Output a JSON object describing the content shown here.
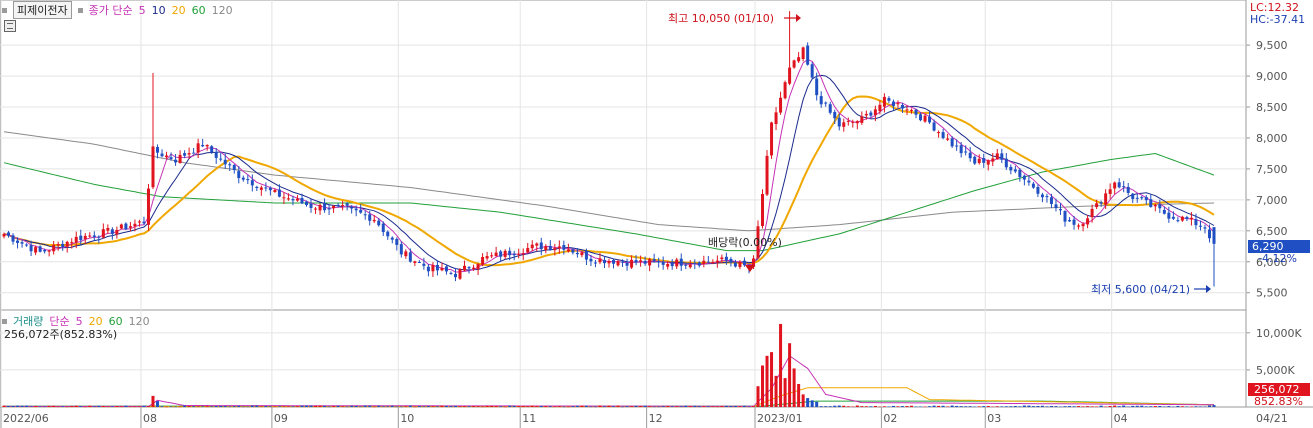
{
  "header": {
    "stock_name": "피제이전자",
    "price_indicator": "종가 단순",
    "ma_periods": [
      "5",
      "10",
      "20",
      "60",
      "120"
    ],
    "lc": "LC:12.32",
    "hc": "HC:-37.41"
  },
  "volume_header": {
    "label": "거래량",
    "ma_label": "단순",
    "ma_periods": [
      "5",
      "20",
      "60",
      "120"
    ],
    "current": "256,072주(852.83%)"
  },
  "annotations": {
    "high": "최고 10,050 (01/10)",
    "low": "최저 5,600 (04/21)",
    "dividend": "배당락(0.00%)"
  },
  "current_price": {
    "value": "6,290",
    "change": "-4.12%"
  },
  "current_volume": {
    "value": "256,072",
    "ratio": "852.83%"
  },
  "colors": {
    "up": "#e0141e",
    "down": "#1f4fc2",
    "ma5": "#c633b6",
    "ma10": "#1a2a8c",
    "ma20": "#f0a800",
    "ma60": "#22a03a",
    "ma120": "#8a8a8a"
  },
  "chart_data": {
    "type": "candlestick",
    "price_axis": {
      "ticks": [
        5500,
        6000,
        6500,
        7000,
        7500,
        8000,
        8500,
        9000,
        9500
      ],
      "tick_labels": [
        "5,500",
        "6,000",
        "6,500",
        "7,000",
        "7,500",
        "8,000",
        "8,500",
        "9,000",
        "9,500"
      ],
      "range": [
        5350,
        10100
      ]
    },
    "volume_axis": {
      "ticks": [
        5000,
        10000
      ],
      "tick_labels": [
        "5,000K",
        "10,000K"
      ],
      "range": [
        0,
        12000
      ]
    },
    "x_axis": {
      "labels": [
        "2022/06",
        "08",
        "09",
        "10",
        "11",
        "12",
        "2023/01",
        "02",
        "03",
        "04",
        "04/21"
      ]
    },
    "price_anchors": [
      {
        "i": 0,
        "p": 6450
      },
      {
        "i": 8,
        "p": 6150
      },
      {
        "i": 16,
        "p": 6380
      },
      {
        "i": 24,
        "p": 6500
      },
      {
        "i": 31,
        "p": 6650
      },
      {
        "i": 33,
        "p": 7800
      },
      {
        "i": 38,
        "p": 7650
      },
      {
        "i": 44,
        "p": 7900
      },
      {
        "i": 52,
        "p": 7400
      },
      {
        "i": 60,
        "p": 7100
      },
      {
        "i": 68,
        "p": 6900
      },
      {
        "i": 76,
        "p": 6850
      },
      {
        "i": 82,
        "p": 6700
      },
      {
        "i": 88,
        "p": 6150
      },
      {
        "i": 94,
        "p": 5900
      },
      {
        "i": 100,
        "p": 5800
      },
      {
        "i": 106,
        "p": 6050
      },
      {
        "i": 112,
        "p": 6150
      },
      {
        "i": 118,
        "p": 6250
      },
      {
        "i": 124,
        "p": 6250
      },
      {
        "i": 130,
        "p": 6050
      },
      {
        "i": 138,
        "p": 6000
      },
      {
        "i": 146,
        "p": 5980
      },
      {
        "i": 154,
        "p": 6000
      },
      {
        "i": 160,
        "p": 6020
      },
      {
        "i": 165,
        "p": 5900
      },
      {
        "i": 166,
        "p": 6000
      },
      {
        "i": 170,
        "p": 8200
      },
      {
        "i": 174,
        "p": 9100
      },
      {
        "i": 177,
        "p": 9400
      },
      {
        "i": 180,
        "p": 8700
      },
      {
        "i": 185,
        "p": 8200
      },
      {
        "i": 190,
        "p": 8300
      },
      {
        "i": 195,
        "p": 8600
      },
      {
        "i": 200,
        "p": 8500
      },
      {
        "i": 205,
        "p": 8250
      },
      {
        "i": 210,
        "p": 7900
      },
      {
        "i": 215,
        "p": 7600
      },
      {
        "i": 220,
        "p": 7700
      },
      {
        "i": 225,
        "p": 7400
      },
      {
        "i": 230,
        "p": 7100
      },
      {
        "i": 235,
        "p": 6700
      },
      {
        "i": 238,
        "p": 6600
      },
      {
        "i": 242,
        "p": 6900
      },
      {
        "i": 246,
        "p": 7300
      },
      {
        "i": 250,
        "p": 7050
      },
      {
        "i": 254,
        "p": 6900
      },
      {
        "i": 258,
        "p": 6750
      },
      {
        "i": 262,
        "p": 6680
      },
      {
        "i": 266,
        "p": 6560
      },
      {
        "i": 268,
        "p": 6290
      }
    ],
    "ma60_anchors": [
      {
        "i": 0,
        "p": 7600
      },
      {
        "i": 20,
        "p": 7250
      },
      {
        "i": 35,
        "p": 7050
      },
      {
        "i": 60,
        "p": 6950
      },
      {
        "i": 90,
        "p": 6950
      },
      {
        "i": 110,
        "p": 6800
      },
      {
        "i": 140,
        "p": 6450
      },
      {
        "i": 160,
        "p": 6180
      },
      {
        "i": 168,
        "p": 6180
      },
      {
        "i": 185,
        "p": 6450
      },
      {
        "i": 200,
        "p": 6800
      },
      {
        "i": 215,
        "p": 7150
      },
      {
        "i": 230,
        "p": 7450
      },
      {
        "i": 245,
        "p": 7650
      },
      {
        "i": 255,
        "p": 7750
      },
      {
        "i": 268,
        "p": 7400
      }
    ],
    "ma120_anchors": [
      {
        "i": 0,
        "p": 8100
      },
      {
        "i": 20,
        "p": 7900
      },
      {
        "i": 40,
        "p": 7600
      },
      {
        "i": 60,
        "p": 7400
      },
      {
        "i": 90,
        "p": 7200
      },
      {
        "i": 120,
        "p": 6900
      },
      {
        "i": 145,
        "p": 6600
      },
      {
        "i": 165,
        "p": 6500
      },
      {
        "i": 185,
        "p": 6600
      },
      {
        "i": 210,
        "p": 6800
      },
      {
        "i": 240,
        "p": 6900
      },
      {
        "i": 268,
        "p": 6950
      }
    ],
    "volume_spikes": [
      {
        "i": 33,
        "v": 1500
      },
      {
        "i": 34,
        "v": 800
      },
      {
        "i": 167,
        "v": 2800
      },
      {
        "i": 168,
        "v": 5600
      },
      {
        "i": 169,
        "v": 6900
      },
      {
        "i": 170,
        "v": 7400
      },
      {
        "i": 171,
        "v": 4200
      },
      {
        "i": 172,
        "v": 11200
      },
      {
        "i": 173,
        "v": 3900
      },
      {
        "i": 174,
        "v": 8600
      },
      {
        "i": 175,
        "v": 5200
      },
      {
        "i": 176,
        "v": 3100
      },
      {
        "i": 177,
        "v": 1700
      },
      {
        "i": 178,
        "v": 1200
      },
      {
        "i": 179,
        "v": 900
      },
      {
        "i": 180,
        "v": 700
      }
    ],
    "volume_ma5_anchors": [
      {
        "i": 0,
        "v": 80
      },
      {
        "i": 32,
        "v": 80
      },
      {
        "i": 34,
        "v": 900
      },
      {
        "i": 40,
        "v": 200
      },
      {
        "i": 166,
        "v": 100
      },
      {
        "i": 170,
        "v": 2500
      },
      {
        "i": 174,
        "v": 6900
      },
      {
        "i": 178,
        "v": 5200
      },
      {
        "i": 182,
        "v": 1700
      },
      {
        "i": 190,
        "v": 600
      },
      {
        "i": 268,
        "v": 300
      }
    ],
    "volume_ma20_anchors": [
      {
        "i": 0,
        "v": 60
      },
      {
        "i": 166,
        "v": 60
      },
      {
        "i": 172,
        "v": 1500
      },
      {
        "i": 178,
        "v": 2600
      },
      {
        "i": 200,
        "v": 2600
      },
      {
        "i": 205,
        "v": 1000
      },
      {
        "i": 268,
        "v": 300
      }
    ],
    "volume_ma60_anchors": [
      {
        "i": 0,
        "v": 120
      },
      {
        "i": 168,
        "v": 120
      },
      {
        "i": 180,
        "v": 800
      },
      {
        "i": 230,
        "v": 800
      },
      {
        "i": 268,
        "v": 300
      }
    ],
    "last_volume_value": 256,
    "high_index": 174,
    "low_index": 268
  }
}
